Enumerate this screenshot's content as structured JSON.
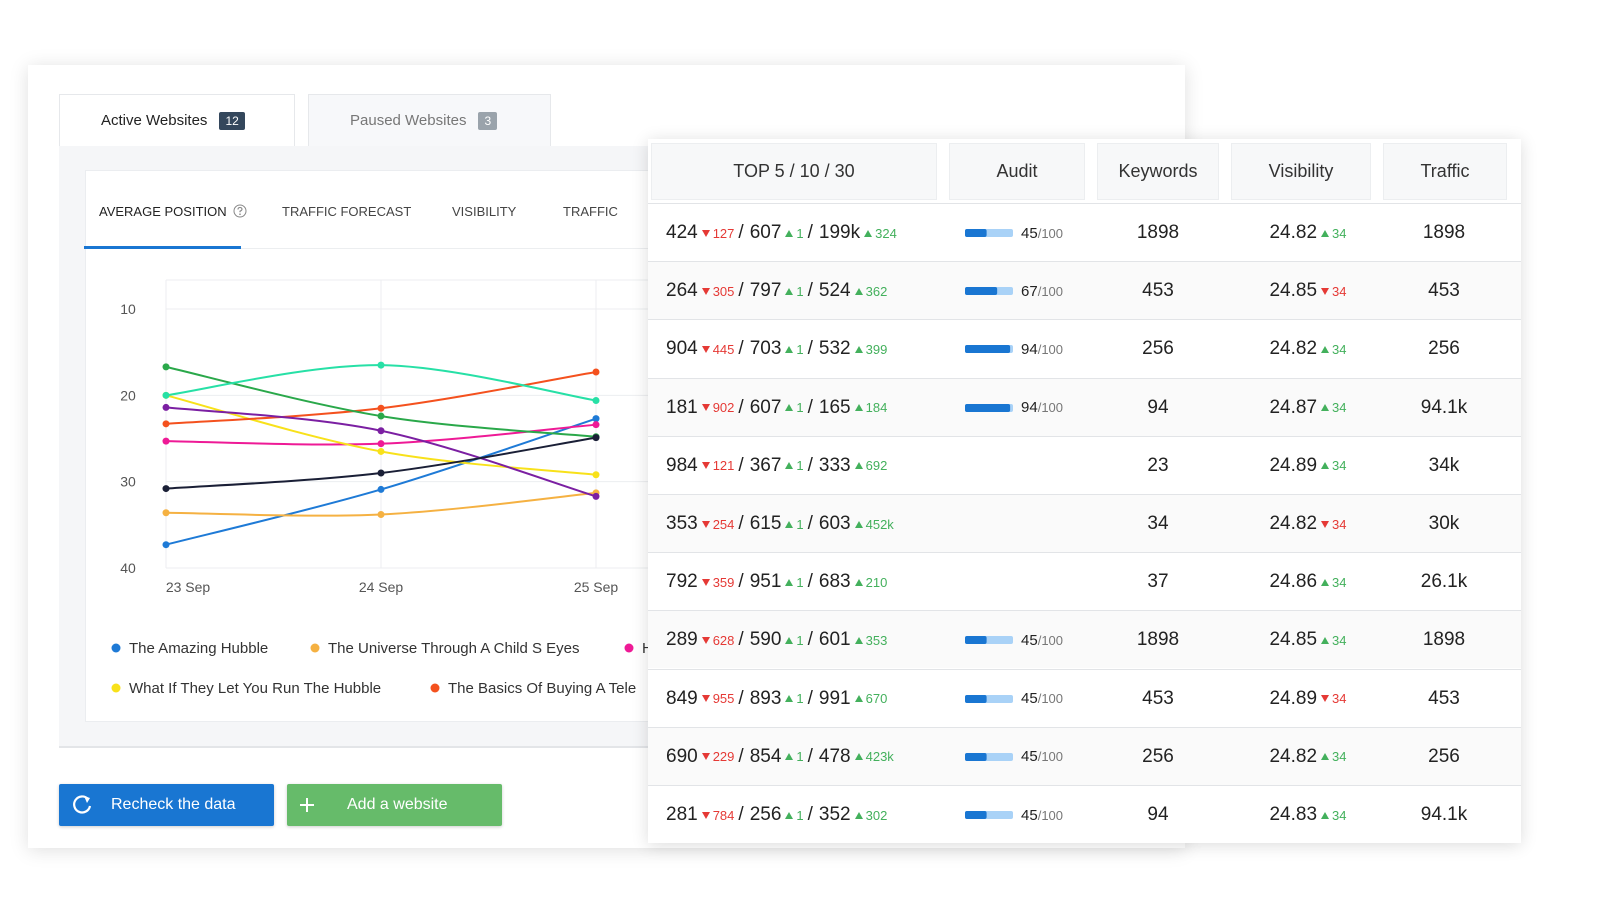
{
  "tabs": [
    {
      "label": "Active Websites",
      "count": 12
    },
    {
      "label": "Paused Websites",
      "count": 3
    }
  ],
  "chart_tabs": [
    "AVERAGE POSITION",
    "TRAFFIC FORECAST",
    "VISIBILITY",
    "TRAFFIC"
  ],
  "chart_data": {
    "type": "line",
    "categories": [
      "23 Sep",
      "24 Sep",
      "25 Sep"
    ],
    "ylim": [
      10,
      40
    ],
    "y_inverted": true,
    "yticks": [
      10,
      20,
      30,
      40
    ],
    "grid": true,
    "series": [
      {
        "name": "The Amazing Hubble",
        "color": "#1e7ad6",
        "values": [
          37.3,
          30.9,
          22.7
        ]
      },
      {
        "name": "The Universe Through A Child S Eyes",
        "color": "#f5b142",
        "values": [
          33.6,
          33.8,
          31.3
        ]
      },
      {
        "name": "H",
        "color": "#ee1a96",
        "values": [
          25.3,
          25.6,
          23.4
        ]
      },
      {
        "name": "What If They Let You Run The Hubble",
        "color": "#f8e11a",
        "values": [
          20.0,
          26.5,
          29.2
        ]
      },
      {
        "name": "The Basics Of Buying A Tele",
        "color": "#f4511e",
        "values": [
          23.3,
          21.5,
          17.3
        ]
      },
      {
        "color": "#2aa84a",
        "values": [
          16.7,
          22.4,
          24.8
        ]
      },
      {
        "color": "#27e0a6",
        "values": [
          20.0,
          16.5,
          20.6
        ]
      },
      {
        "color": "#7b1fa2",
        "values": [
          21.4,
          24.1,
          31.7
        ]
      },
      {
        "color": "#1a1f36",
        "values": [
          30.8,
          29.0,
          24.9
        ]
      }
    ]
  },
  "table": {
    "columns": [
      "TOP 5 / 10 / 30",
      "Audit",
      "Keywords",
      "Visibility",
      "Traffic"
    ],
    "separator": "/",
    "audit_max": 100,
    "rows": [
      {
        "top5": 424,
        "top5_change": 127,
        "top5_dir": "down",
        "top10": 607,
        "top10_change": 1,
        "top10_dir": "up",
        "top30": "199k",
        "top30_change": 324,
        "top30_dir": "up",
        "audit": 45,
        "keywords": 1898,
        "visibility": 24.82,
        "visibility_change": 34,
        "visibility_dir": "up",
        "traffic": 1898
      },
      {
        "top5": 264,
        "top5_change": 305,
        "top5_dir": "down",
        "top10": 797,
        "top10_change": 1,
        "top10_dir": "up",
        "top30": 524,
        "top30_change": 362,
        "top30_dir": "up",
        "audit": 67,
        "keywords": 453,
        "visibility": 24.85,
        "visibility_change": 34,
        "visibility_dir": "down",
        "traffic": 453
      },
      {
        "top5": 904,
        "top5_change": 445,
        "top5_dir": "down",
        "top10": 703,
        "top10_change": 1,
        "top10_dir": "up",
        "top30": 532,
        "top30_change": 399,
        "top30_dir": "up",
        "audit": 94,
        "keywords": 256,
        "visibility": 24.82,
        "visibility_change": 34,
        "visibility_dir": "up",
        "traffic": 256
      },
      {
        "top5": 181,
        "top5_change": 902,
        "top5_dir": "down",
        "top10": 607,
        "top10_change": 1,
        "top10_dir": "up",
        "top30": 165,
        "top30_change": 184,
        "top30_dir": "up",
        "audit": 94,
        "keywords": 94,
        "visibility": 24.87,
        "visibility_change": 34,
        "visibility_dir": "up",
        "traffic": "94.1k"
      },
      {
        "top5": 984,
        "top5_change": 121,
        "top5_dir": "down",
        "top10": 367,
        "top10_change": 1,
        "top10_dir": "up",
        "top30": 333,
        "top30_change": 692,
        "top30_dir": "up",
        "audit": null,
        "keywords": 23,
        "visibility": 24.89,
        "visibility_change": 34,
        "visibility_dir": "up",
        "traffic": "34k"
      },
      {
        "top5": 353,
        "top5_change": 254,
        "top5_dir": "down",
        "top10": 615,
        "top10_change": 1,
        "top10_dir": "up",
        "top30": 603,
        "top30_change": "452k",
        "top30_dir": "up",
        "audit": null,
        "keywords": 34,
        "visibility": 24.82,
        "visibility_change": 34,
        "visibility_dir": "down",
        "traffic": "30k"
      },
      {
        "top5": 792,
        "top5_change": 359,
        "top5_dir": "down",
        "top10": 951,
        "top10_change": 1,
        "top10_dir": "up",
        "top30": 683,
        "top30_change": 210,
        "top30_dir": "up",
        "audit": null,
        "keywords": 37,
        "visibility": 24.86,
        "visibility_change": 34,
        "visibility_dir": "up",
        "traffic": "26.1k"
      },
      {
        "top5": 289,
        "top5_change": 628,
        "top5_dir": "down",
        "top10": 590,
        "top10_change": 1,
        "top10_dir": "up",
        "top30": 601,
        "top30_change": 353,
        "top30_dir": "up",
        "audit": 45,
        "keywords": 1898,
        "visibility": 24.85,
        "visibility_change": 34,
        "visibility_dir": "up",
        "traffic": 1898
      },
      {
        "top5": 849,
        "top5_change": 955,
        "top5_dir": "down",
        "top10": 893,
        "top10_change": 1,
        "top10_dir": "up",
        "top30": 991,
        "top30_change": 670,
        "top30_dir": "up",
        "audit": 45,
        "keywords": 453,
        "visibility": 24.89,
        "visibility_change": 34,
        "visibility_dir": "down",
        "traffic": 453
      },
      {
        "top5": 690,
        "top5_change": 229,
        "top5_dir": "down",
        "top10": 854,
        "top10_change": 1,
        "top10_dir": "up",
        "top30": 478,
        "top30_change": "423k",
        "top30_dir": "up",
        "audit": 45,
        "keywords": 256,
        "visibility": 24.82,
        "visibility_change": 34,
        "visibility_dir": "up",
        "traffic": 256
      },
      {
        "top5": 281,
        "top5_change": 784,
        "top5_dir": "down",
        "top10": 256,
        "top10_change": 1,
        "top10_dir": "up",
        "top30": 352,
        "top30_change": 302,
        "top30_dir": "up",
        "audit": 45,
        "keywords": 94,
        "visibility": 24.83,
        "visibility_change": 34,
        "visibility_dir": "up",
        "traffic": "94.1k"
      }
    ]
  },
  "buttons": [
    "Recheck the data",
    "Add a website"
  ]
}
